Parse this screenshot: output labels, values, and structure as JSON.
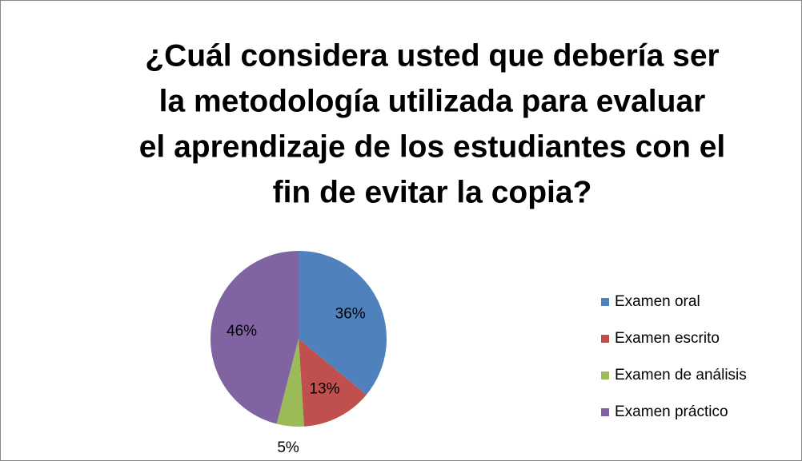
{
  "chart_data": {
    "type": "pie",
    "title": [
      "¿Cuál considera usted que debería ser",
      "la metodología utilizada para evaluar",
      "el aprendizaje de los estudiantes con el",
      "fin de evitar la copia?"
    ],
    "categories": [
      "Examen oral",
      "Examen escrito",
      "Examen de análisis",
      "Examen práctico"
    ],
    "values": [
      36,
      13,
      5,
      46
    ],
    "value_labels": [
      "36%",
      "13%",
      "5%",
      "46%"
    ],
    "colors": [
      "#4f81bd",
      "#c0504d",
      "#9bbb59",
      "#8064a2"
    ],
    "legend": "right"
  }
}
